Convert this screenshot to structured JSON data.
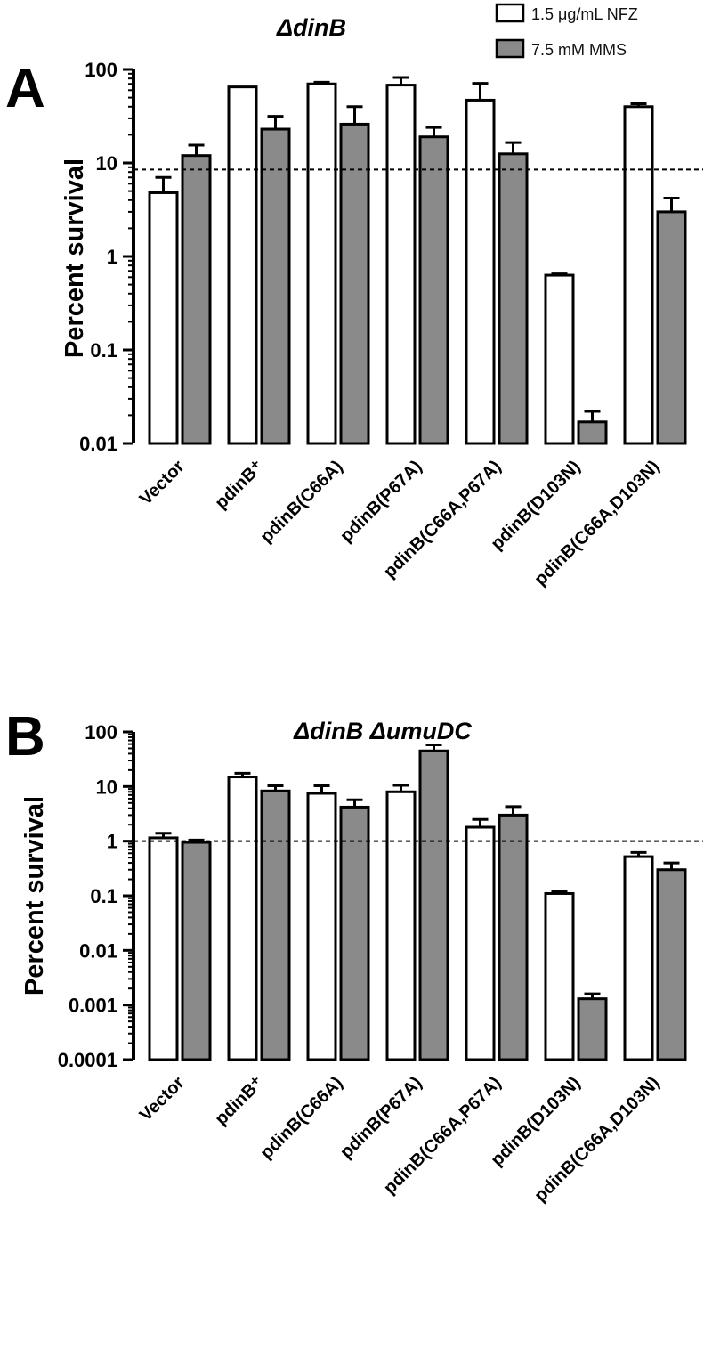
{
  "legend": {
    "entries": [
      {
        "label": "1.5 μg/mL NFZ",
        "color": "#ffffff"
      },
      {
        "label": "7.5 mM MMS",
        "color": "#8a8a8a"
      }
    ]
  },
  "chart_data": [
    {
      "panel": "A",
      "type": "bar",
      "title": "ΔdinB",
      "xlabel": "",
      "ylabel": "Percent survival",
      "yscale": "log",
      "ylim": [
        0.01,
        100
      ],
      "yticks": [
        "100",
        "10",
        "1",
        "0.1",
        "0.01"
      ],
      "reference_line": 8.5,
      "categories": [
        "Vector",
        "pdinB⁺",
        "pdinB(C66A)",
        "pdinB(P67A)",
        "pdinB(C66A,P67A)",
        "pdinB(D103N)",
        "pdinB(C66A,D103N)"
      ],
      "series": [
        {
          "name": "1.5 μg/mL NFZ",
          "color": "#ffffff",
          "values": [
            4.8,
            65,
            70,
            68,
            47,
            0.63,
            40
          ],
          "errors": [
            2.2,
            0,
            3,
            14,
            24,
            0.02,
            3
          ]
        },
        {
          "name": "7.5 mM MMS",
          "color": "#8a8a8a",
          "values": [
            12,
            23,
            26,
            19,
            12.5,
            0.017,
            3.0
          ],
          "errors": [
            3.5,
            8.5,
            14,
            5,
            4,
            0.005,
            1.2
          ]
        }
      ]
    },
    {
      "panel": "B",
      "type": "bar",
      "title": "ΔdinB ΔumuDC",
      "xlabel": "",
      "ylabel": "Percent survival",
      "yscale": "log",
      "ylim": [
        0.0001,
        100
      ],
      "yticks": [
        "100",
        "10",
        "1",
        "0.1",
        "0.01",
        "0.001",
        "0.0001"
      ],
      "reference_line": 1,
      "categories": [
        "Vector",
        "pdinB⁺",
        "pdinB(C66A)",
        "pdinB(P67A)",
        "pdinB(C66A,P67A)",
        "pdinB(D103N)",
        "pdinB(C66A,D103N)"
      ],
      "series": [
        {
          "name": "1.5 μg/mL NFZ",
          "color": "#ffffff",
          "values": [
            1.15,
            15,
            7.5,
            8,
            1.8,
            0.11,
            0.52
          ],
          "errors": [
            0.25,
            2.5,
            2.8,
            2.5,
            0.7,
            0.01,
            0.1
          ]
        },
        {
          "name": "7.5 mM MMS",
          "color": "#8a8a8a",
          "values": [
            0.95,
            8.3,
            4.2,
            45,
            3.0,
            0.0013,
            0.3
          ],
          "errors": [
            0.1,
            2,
            1.5,
            13,
            1.3,
            0.0003,
            0.1
          ]
        }
      ]
    }
  ]
}
